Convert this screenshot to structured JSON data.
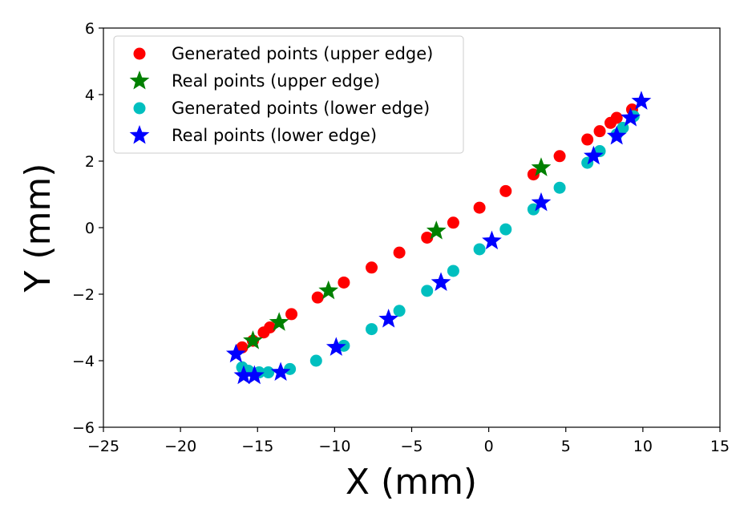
{
  "chart_data": {
    "type": "scatter",
    "title": "",
    "xlabel": "X (mm)",
    "ylabel": "Y (mm)",
    "xlim": [
      -25,
      15
    ],
    "ylim": [
      -6,
      6
    ],
    "xticks": [
      -25,
      -20,
      -15,
      -10,
      -5,
      0,
      5,
      10,
      15
    ],
    "yticks": [
      -6,
      -4,
      -2,
      0,
      2,
      4,
      6
    ],
    "xtick_labels": [
      "−25",
      "−20",
      "−15",
      "−10",
      "−5",
      "0",
      "5",
      "10",
      "15"
    ],
    "ytick_labels": [
      "−6",
      "−4",
      "−2",
      "0",
      "2",
      "4",
      "6"
    ],
    "grid": false,
    "legend_position": "upper-left",
    "series": [
      {
        "name": "Generated points (upper edge)",
        "marker": "circle",
        "color": "#ff0000",
        "points": [
          [
            -16.0,
            -3.6
          ],
          [
            -15.3,
            -3.4
          ],
          [
            -14.6,
            -3.15
          ],
          [
            -14.2,
            -3.0
          ],
          [
            -12.8,
            -2.6
          ],
          [
            -11.1,
            -2.1
          ],
          [
            -9.4,
            -1.65
          ],
          [
            -7.6,
            -1.2
          ],
          [
            -5.8,
            -0.75
          ],
          [
            -4.0,
            -0.3
          ],
          [
            -2.3,
            0.15
          ],
          [
            -0.6,
            0.6
          ],
          [
            1.1,
            1.1
          ],
          [
            2.9,
            1.6
          ],
          [
            4.6,
            2.15
          ],
          [
            6.4,
            2.65
          ],
          [
            7.2,
            2.9
          ],
          [
            7.9,
            3.15
          ],
          [
            8.3,
            3.3
          ],
          [
            9.3,
            3.55
          ]
        ]
      },
      {
        "name": "Real points (upper edge)",
        "marker": "star",
        "color": "#008000",
        "points": [
          [
            -15.3,
            -3.4
          ],
          [
            -13.6,
            -2.85
          ],
          [
            -10.4,
            -1.9
          ],
          [
            -3.4,
            -0.1
          ],
          [
            3.4,
            1.8
          ]
        ]
      },
      {
        "name": "Generated points (lower edge)",
        "marker": "circle",
        "color": "#00bfbf",
        "points": [
          [
            -16.0,
            -4.2
          ],
          [
            -15.6,
            -4.3
          ],
          [
            -14.9,
            -4.35
          ],
          [
            -14.3,
            -4.35
          ],
          [
            -12.9,
            -4.25
          ],
          [
            -11.2,
            -4.0
          ],
          [
            -9.4,
            -3.55
          ],
          [
            -7.6,
            -3.05
          ],
          [
            -5.8,
            -2.5
          ],
          [
            -4.0,
            -1.9
          ],
          [
            -2.3,
            -1.3
          ],
          [
            -0.6,
            -0.65
          ],
          [
            1.1,
            -0.05
          ],
          [
            2.9,
            0.55
          ],
          [
            4.6,
            1.2
          ],
          [
            6.4,
            1.95
          ],
          [
            7.2,
            2.3
          ],
          [
            8.3,
            2.8
          ],
          [
            8.7,
            3.0
          ],
          [
            9.4,
            3.35
          ]
        ]
      },
      {
        "name": "Real points (lower edge)",
        "marker": "star",
        "color": "#0000ff",
        "points": [
          [
            -16.4,
            -3.8
          ],
          [
            -15.9,
            -4.45
          ],
          [
            -15.2,
            -4.45
          ],
          [
            -13.5,
            -4.35
          ],
          [
            -9.9,
            -3.6
          ],
          [
            -6.5,
            -2.75
          ],
          [
            -3.1,
            -1.65
          ],
          [
            0.2,
            -0.4
          ],
          [
            3.4,
            0.75
          ],
          [
            6.8,
            2.15
          ],
          [
            8.3,
            2.75
          ],
          [
            9.2,
            3.3
          ],
          [
            9.9,
            3.8
          ]
        ]
      }
    ]
  }
}
